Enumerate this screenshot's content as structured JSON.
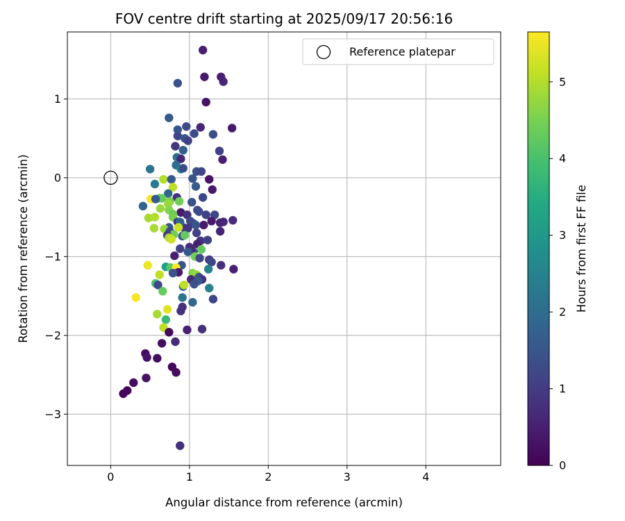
{
  "chart_data": {
    "type": "scatter",
    "title": "FOV centre drift starting at 2025/09/17 20:56:16",
    "xlabel": "Angular distance from reference (arcmin)",
    "ylabel": "Rotation from reference (arcmin)",
    "xlim": [
      -0.55,
      4.95
    ],
    "ylim": [
      -3.65,
      1.85
    ],
    "x_ticks": [
      0,
      1,
      2,
      3,
      4
    ],
    "y_ticks": [
      -3,
      -2,
      -1,
      0,
      1
    ],
    "grid": true,
    "legend": {
      "placement": "top-right",
      "entries": [
        {
          "label": "Reference platepar",
          "marker": "open-circle"
        }
      ]
    },
    "colorbar": {
      "label": "Hours from first FF file",
      "colormap": "viridis",
      "range": [
        0,
        5.65
      ],
      "ticks": [
        0,
        1,
        2,
        3,
        4,
        5
      ]
    },
    "reference_point": {
      "name": "Reference platepar",
      "x": 0,
      "y": 0
    },
    "points": [
      [
        1.17,
        1.62,
        0.5
      ],
      [
        0.85,
        1.2,
        1.4
      ],
      [
        1.19,
        1.28,
        0.4
      ],
      [
        1.4,
        1.28,
        0.5
      ],
      [
        1.43,
        1.22,
        0.6
      ],
      [
        1.21,
        0.96,
        0.3
      ],
      [
        0.74,
        0.76,
        1.6
      ],
      [
        0.96,
        0.65,
        1.3
      ],
      [
        0.85,
        0.61,
        1.5
      ],
      [
        1.14,
        0.64,
        0.6
      ],
      [
        1.54,
        0.63,
        0.4
      ],
      [
        1.3,
        0.55,
        1.4
      ],
      [
        0.85,
        0.53,
        1.2
      ],
      [
        1.06,
        0.56,
        1.3
      ],
      [
        0.94,
        0.5,
        1.5
      ],
      [
        0.98,
        0.47,
        1.1
      ],
      [
        0.82,
        0.4,
        0.9
      ],
      [
        1.38,
        0.34,
        1.1
      ],
      [
        0.92,
        0.35,
        1.7
      ],
      [
        0.84,
        0.26,
        2.1
      ],
      [
        0.89,
        0.24,
        0.6
      ],
      [
        1.42,
        0.23,
        0.5
      ],
      [
        0.83,
        0.16,
        2.0
      ],
      [
        0.5,
        0.11,
        2.2
      ],
      [
        0.89,
        0.11,
        2.5
      ],
      [
        0.92,
        0.12,
        1.3
      ],
      [
        1.09,
        0.08,
        1.4
      ],
      [
        1.15,
        0.08,
        1.2
      ],
      [
        1.04,
        -0.01,
        1.5
      ],
      [
        1.25,
        -0.02,
        0.3
      ],
      [
        0.67,
        -0.02,
        5.0
      ],
      [
        0.77,
        -0.02,
        1.6
      ],
      [
        0.56,
        -0.08,
        2.3
      ],
      [
        1.08,
        -0.11,
        1.6
      ],
      [
        1.29,
        -0.15,
        0.4
      ],
      [
        0.79,
        -0.12,
        5.1
      ],
      [
        0.73,
        -0.2,
        1.9
      ],
      [
        0.62,
        -0.26,
        4.1
      ],
      [
        0.65,
        -0.26,
        4.3
      ],
      [
        0.51,
        -0.27,
        5.6
      ],
      [
        0.57,
        -0.27,
        1.6
      ],
      [
        1.17,
        -0.25,
        1.2
      ],
      [
        0.84,
        -0.25,
        0.8
      ],
      [
        0.87,
        -0.3,
        4.4
      ],
      [
        0.75,
        -0.3,
        4.5
      ],
      [
        0.73,
        -0.33,
        4.8
      ],
      [
        1.03,
        -0.31,
        1.4
      ],
      [
        0.41,
        -0.36,
        1.8
      ],
      [
        0.63,
        -0.39,
        4.8
      ],
      [
        0.74,
        -0.41,
        4.6
      ],
      [
        1.1,
        -0.41,
        1.2
      ],
      [
        1.12,
        -0.43,
        1.3
      ],
      [
        0.89,
        -0.44,
        0.4
      ],
      [
        0.97,
        -0.47,
        0.8
      ],
      [
        1.21,
        -0.47,
        1.1
      ],
      [
        1.32,
        -0.47,
        1.2
      ],
      [
        0.79,
        -0.46,
        4.4
      ],
      [
        0.79,
        -0.5,
        4.5
      ],
      [
        0.48,
        -0.51,
        4.9
      ],
      [
        0.56,
        -0.5,
        5.0
      ],
      [
        1.28,
        -0.55,
        0.4
      ],
      [
        1.39,
        -0.57,
        0.5
      ],
      [
        1.43,
        -0.56,
        0.6
      ],
      [
        1.55,
        -0.54,
        0.7
      ],
      [
        1.01,
        -0.55,
        1.3
      ],
      [
        0.85,
        -0.56,
        0.9
      ],
      [
        1.18,
        -0.6,
        0.4
      ],
      [
        0.92,
        -0.63,
        1.0
      ],
      [
        1.05,
        -0.58,
        1.2
      ],
      [
        1.08,
        -0.6,
        1.5
      ],
      [
        0.88,
        -0.56,
        1.8
      ],
      [
        0.74,
        -0.63,
        1.6
      ],
      [
        0.98,
        -0.64,
        0.9
      ],
      [
        0.68,
        -0.65,
        4.8
      ],
      [
        0.55,
        -0.64,
        4.9
      ],
      [
        0.75,
        -0.68,
        1.3
      ],
      [
        0.86,
        -0.63,
        5.2
      ],
      [
        1.39,
        -0.68,
        0.6
      ],
      [
        1.09,
        -0.7,
        1.1
      ],
      [
        0.8,
        -0.72,
        4.4
      ],
      [
        0.72,
        -0.73,
        0.9
      ],
      [
        0.91,
        -0.74,
        1.4
      ],
      [
        0.94,
        -0.73,
        4.3
      ],
      [
        0.74,
        -0.76,
        4.9
      ],
      [
        0.77,
        -0.78,
        5.2
      ],
      [
        1.14,
        -0.8,
        0.9
      ],
      [
        1.23,
        -0.79,
        1.1
      ],
      [
        1.1,
        -0.84,
        0.5
      ],
      [
        1.0,
        -0.88,
        0.8
      ],
      [
        0.88,
        -0.9,
        1.1
      ],
      [
        1.15,
        -0.91,
        4.3
      ],
      [
        1.05,
        -0.94,
        1.4
      ],
      [
        1.02,
        -0.91,
        0.7
      ],
      [
        0.98,
        -0.94,
        1.6
      ],
      [
        0.81,
        -0.99,
        0.5
      ],
      [
        1.07,
        -1.0,
        4.4
      ],
      [
        1.13,
        -1.02,
        1.2
      ],
      [
        1.25,
        -1.04,
        1.0
      ],
      [
        1.28,
        -1.07,
        1.2
      ],
      [
        0.9,
        -1.11,
        1.5
      ],
      [
        1.4,
        -1.11,
        0.8
      ],
      [
        0.7,
        -1.13,
        3.2
      ],
      [
        0.76,
        -1.14,
        4.2
      ],
      [
        0.83,
        -1.14,
        5.6
      ],
      [
        0.47,
        -1.11,
        5.5
      ],
      [
        1.24,
        -1.16,
        2.5
      ],
      [
        1.56,
        -1.16,
        0.5
      ],
      [
        0.86,
        -1.2,
        0.4
      ],
      [
        0.79,
        -1.21,
        1.4
      ],
      [
        1.04,
        -1.21,
        4.6
      ],
      [
        1.09,
        -1.23,
        4.8
      ],
      [
        0.62,
        -1.23,
        5.1
      ],
      [
        1.12,
        -1.26,
        1.4
      ],
      [
        1.02,
        -1.29,
        0.7
      ],
      [
        1.16,
        -1.29,
        0.8
      ],
      [
        1.11,
        -1.31,
        1.6
      ],
      [
        0.57,
        -1.34,
        4.0
      ],
      [
        0.6,
        -1.36,
        1.2
      ],
      [
        1.06,
        -1.35,
        1.4
      ],
      [
        0.92,
        -1.38,
        1.8
      ],
      [
        0.93,
        -1.36,
        5.1
      ],
      [
        1.25,
        -1.4,
        2.5
      ],
      [
        0.66,
        -1.44,
        4.3
      ],
      [
        0.32,
        -1.52,
        5.6
      ],
      [
        0.91,
        -1.52,
        2.2
      ],
      [
        1.3,
        -1.54,
        1.2
      ],
      [
        1.04,
        -1.58,
        1.9
      ],
      [
        0.91,
        -1.64,
        0.8
      ],
      [
        0.89,
        -1.69,
        0.8
      ],
      [
        0.72,
        -1.67,
        5.4
      ],
      [
        0.59,
        -1.73,
        4.9
      ],
      [
        0.7,
        -1.8,
        3.8
      ],
      [
        0.67,
        -1.9,
        5.1
      ],
      [
        0.97,
        -1.93,
        0.5
      ],
      [
        1.16,
        -1.92,
        0.8
      ],
      [
        0.74,
        -1.96,
        0.1
      ],
      [
        0.65,
        -2.1,
        0.2
      ],
      [
        0.82,
        -2.08,
        0.7
      ],
      [
        0.44,
        -2.23,
        0.2
      ],
      [
        0.46,
        -2.28,
        0.3
      ],
      [
        0.59,
        -2.29,
        0.2
      ],
      [
        0.78,
        -2.4,
        0.1
      ],
      [
        0.83,
        -2.47,
        0.2
      ],
      [
        0.45,
        -2.54,
        0.3
      ],
      [
        0.29,
        -2.6,
        0.2
      ],
      [
        0.21,
        -2.7,
        0.1
      ],
      [
        0.16,
        -2.74,
        0.1
      ],
      [
        0.88,
        -3.4,
        0.8
      ]
    ]
  }
}
